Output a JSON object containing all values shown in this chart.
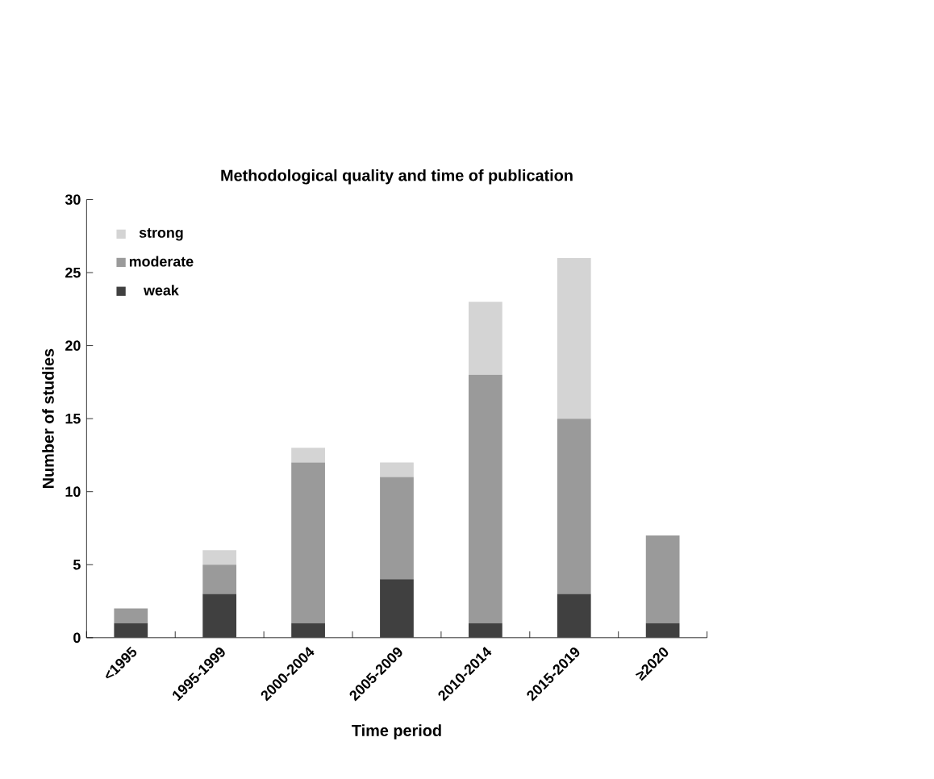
{
  "chart_data": {
    "type": "bar",
    "stacked": true,
    "title": "Methodological quality and time of publication",
    "xlabel": "Time period",
    "ylabel": "Number of studies",
    "categories": [
      "<1995",
      "1995-1999",
      "2000-2004",
      "2005-2009",
      "2010-2014",
      "2015-2019",
      "≥2020"
    ],
    "series": [
      {
        "name": "weak",
        "color": "#404040",
        "values": [
          1,
          3,
          1,
          4,
          1,
          3,
          1
        ]
      },
      {
        "name": "moderate",
        "color": "#9a9a9a",
        "values": [
          1,
          2,
          11,
          7,
          17,
          12,
          6
        ]
      },
      {
        "name": "strong",
        "color": "#d4d4d4",
        "values": [
          0,
          1,
          1,
          1,
          5,
          11,
          0
        ]
      }
    ],
    "ylim": [
      0,
      30
    ],
    "yticks": [
      0,
      5,
      10,
      15,
      20,
      25,
      30
    ],
    "legend": "top left",
    "grid": false
  }
}
